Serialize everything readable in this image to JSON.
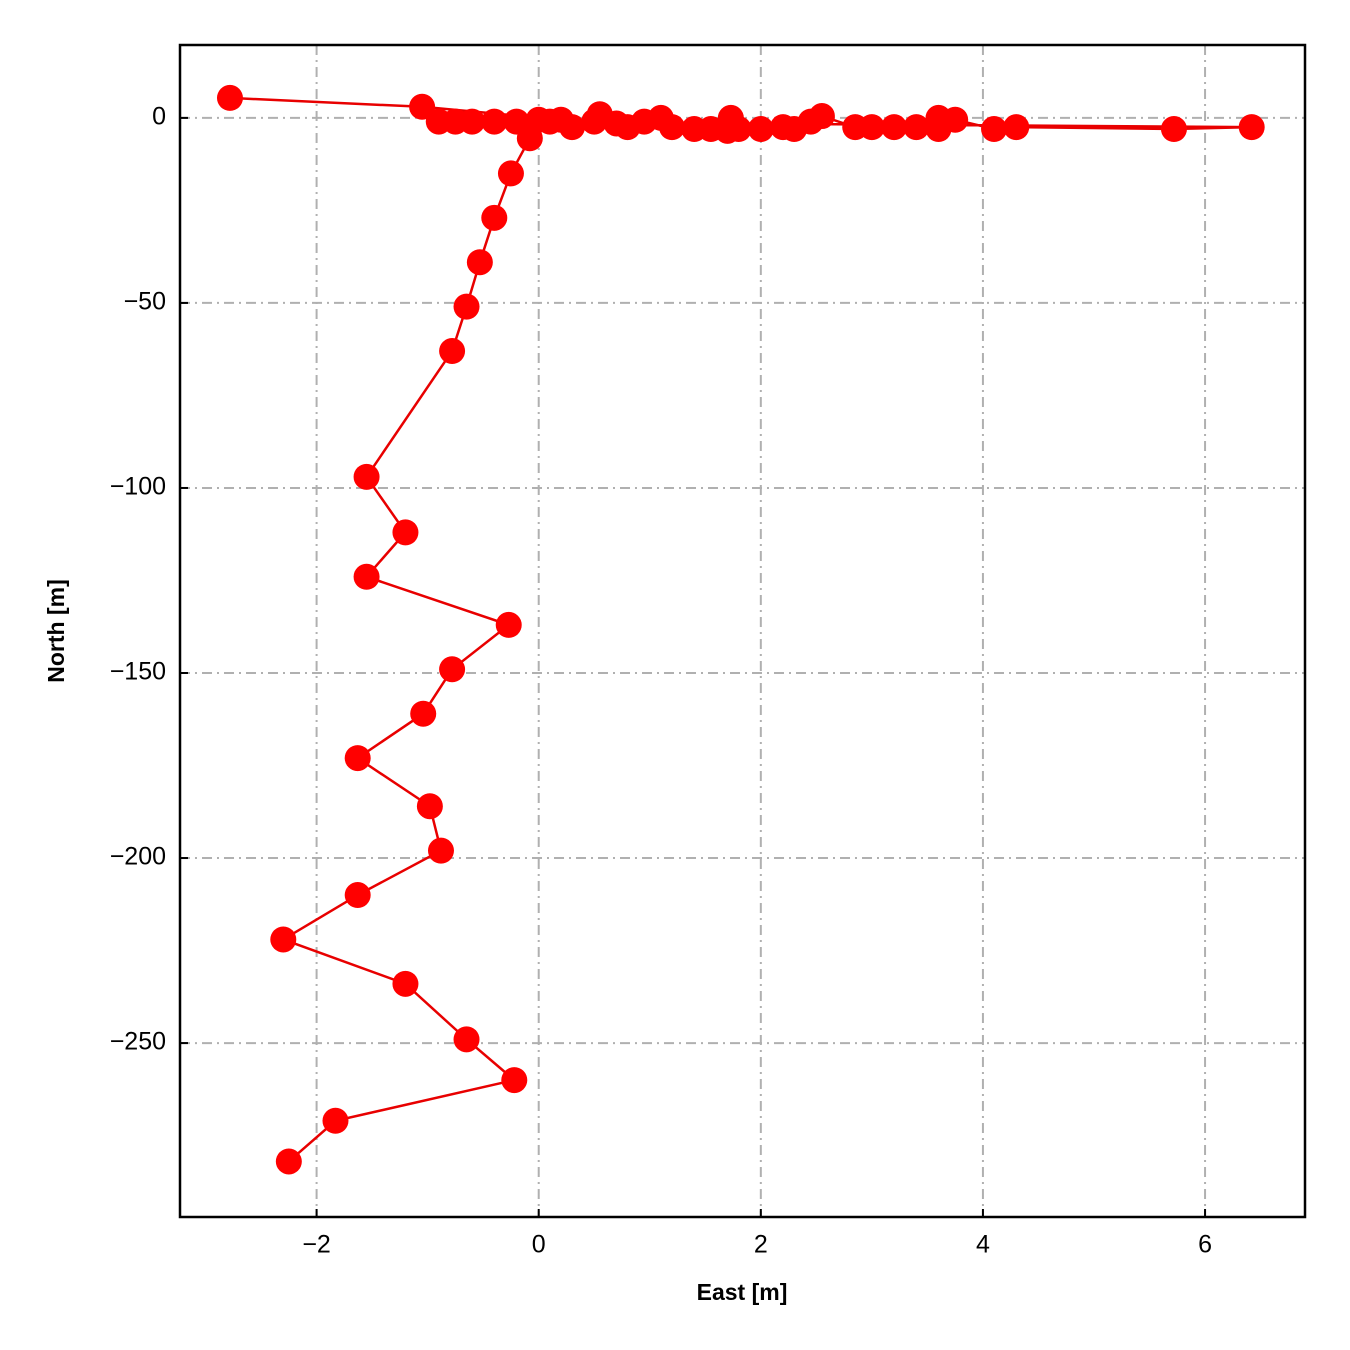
{
  "chart_data": {
    "type": "line",
    "xlabel": "East [m]",
    "ylabel": "North [m]",
    "x": [
      -2.25,
      -1.83,
      -0.22,
      -0.65,
      -1.2,
      -2.3,
      -1.63,
      -0.88,
      -0.98,
      -1.63,
      -1.04,
      -0.78,
      -0.27,
      -1.55,
      -1.2,
      -1.55,
      -0.78,
      -0.65,
      -0.53,
      -0.4,
      -0.25,
      -0.08,
      0.1,
      0.3,
      0.5,
      0.55,
      0.7,
      0.8,
      0.95,
      1.1,
      1.2,
      1.4,
      1.55,
      1.7,
      1.73,
      1.8,
      2.0,
      2.2,
      2.3,
      2.45,
      2.55,
      2.85,
      3.0,
      3.2,
      3.4,
      3.6,
      3.6,
      3.75,
      4.1,
      4.3,
      5.72,
      6.42,
      -0.9,
      -0.75,
      -0.6,
      -0.4,
      -0.2,
      0.0,
      0.2,
      -1.05,
      -2.78
    ],
    "values": [
      -282,
      -271,
      -260,
      -249,
      -234,
      -222,
      -210,
      -198,
      -186,
      -173,
      -161,
      -149,
      -137,
      -124,
      -112,
      -97,
      -63,
      -51,
      -39,
      -27,
      -15,
      -5.5,
      -1,
      -2.5,
      -1,
      1,
      -1.5,
      -2.5,
      -1,
      0,
      -2.5,
      -3,
      -3,
      -3.5,
      0,
      -3,
      -3,
      -2.5,
      -3,
      -1,
      0.5,
      -2.5,
      -2.5,
      -2.5,
      -2.5,
      -3,
      0,
      -0.5,
      -3,
      -2.5,
      -3,
      -2.5,
      -1,
      -1,
      -1,
      -1,
      -1,
      -0.5,
      -0.5,
      3,
      5.4
    ],
    "color": "#e80000",
    "marker_color": "#ff0000",
    "markers": true,
    "xlim": [
      -3.23,
      6.9
    ],
    "ylim": [
      -297,
      19.7
    ],
    "xticks": [
      {
        "value": -2,
        "label": "−2"
      },
      0,
      2,
      4,
      6
    ],
    "yticks": [
      {
        "value": -250,
        "label": "−250"
      },
      {
        "value": -200,
        "label": "−200"
      },
      {
        "value": -150,
        "label": "−150"
      },
      {
        "value": -100,
        "label": "−100"
      },
      {
        "value": -50,
        "label": "−50"
      },
      0
    ],
    "grid": true
  }
}
